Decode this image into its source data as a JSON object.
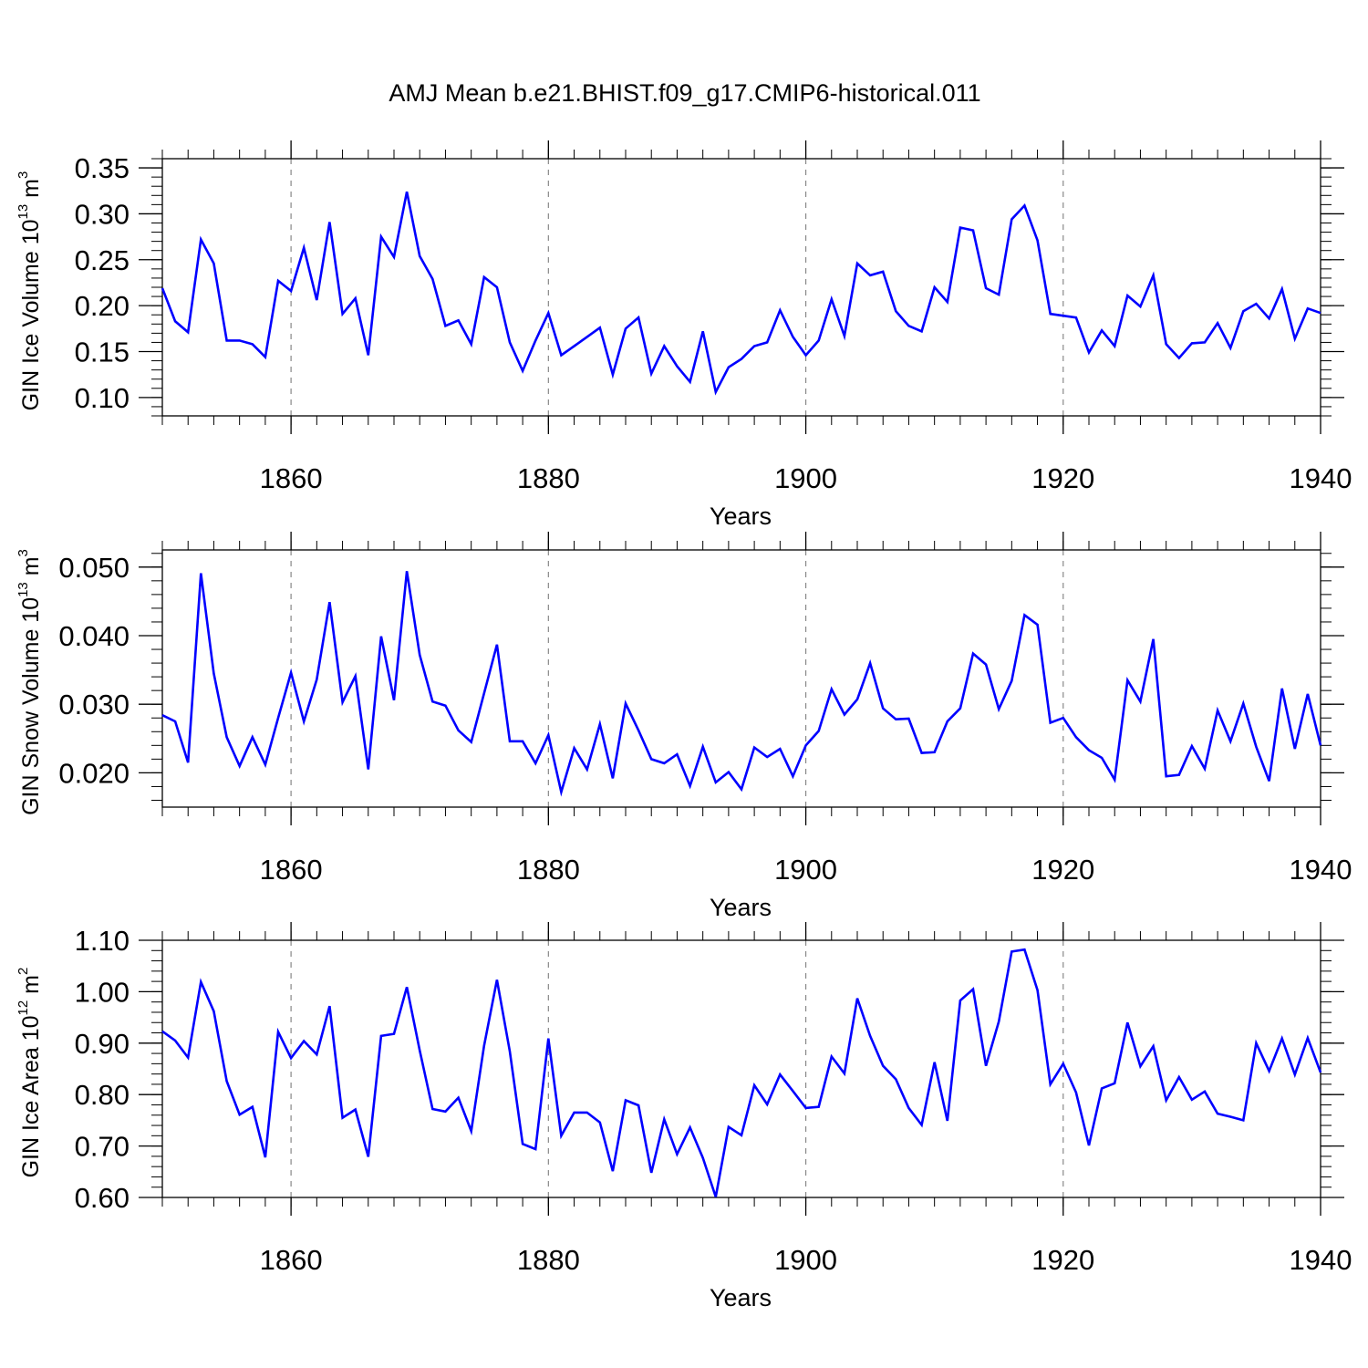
{
  "title": "AMJ Mean b.e21.BHIST.f09_g17.CMIP6-historical.011",
  "colors": {
    "line": "#0000ff",
    "axis": "#000000",
    "grid": "#888888"
  },
  "chart_data": [
    {
      "type": "line",
      "title": "",
      "xlabel": "Years",
      "ylabel": {
        "text": "GIN Ice Volume 10",
        "exp": "13",
        "unit": " m",
        "unit_exp": "3"
      },
      "xlim": [
        1850,
        1940
      ],
      "ylim": [
        0.08,
        0.36
      ],
      "xticks": [
        "1860",
        "1880",
        "1900",
        "1920",
        "1940"
      ],
      "yticks": [
        "0.10",
        "0.15",
        "0.20",
        "0.25",
        "0.30",
        "0.35"
      ],
      "grid": "dashed vertical lines at major x ticks",
      "series": [
        {
          "x": [
            1850,
            1851,
            1852,
            1853,
            1854,
            1855,
            1856,
            1857,
            1858,
            1859,
            1860,
            1861,
            1862,
            1863,
            1864,
            1865,
            1866,
            1867,
            1868,
            1869,
            1870,
            1871,
            1872,
            1873,
            1874,
            1875,
            1876,
            1877,
            1878,
            1879,
            1880,
            1881,
            1882,
            1883,
            1884,
            1885,
            1886,
            1887,
            1888,
            1889,
            1890,
            1891,
            1892,
            1893,
            1894,
            1895,
            1896,
            1897,
            1898,
            1899,
            1900,
            1901,
            1902,
            1903,
            1904,
            1905,
            1906,
            1907,
            1908,
            1909,
            1910,
            1911,
            1912,
            1913,
            1914,
            1915,
            1916,
            1917,
            1918,
            1919,
            1920,
            1921,
            1922,
            1923,
            1924,
            1925,
            1926,
            1927,
            1928,
            1929,
            1930,
            1931,
            1932,
            1933,
            1934,
            1935,
            1936,
            1937,
            1938,
            1939,
            1940
          ],
          "values": [
            0.219,
            0.183,
            0.171,
            0.272,
            0.246,
            0.162,
            0.162,
            0.158,
            0.144,
            0.227,
            0.216,
            0.263,
            0.206,
            0.291,
            0.191,
            0.208,
            0.146,
            0.275,
            0.253,
            0.324,
            0.254,
            0.229,
            0.178,
            0.184,
            0.158,
            0.231,
            0.22,
            0.16,
            0.129,
            0.162,
            0.192,
            0.146,
            0.156,
            0.166,
            0.176,
            0.125,
            0.175,
            0.187,
            0.126,
            0.156,
            0.134,
            0.117,
            0.172,
            0.106,
            0.133,
            0.142,
            0.156,
            0.16,
            0.195,
            0.166,
            0.146,
            0.162,
            0.207,
            0.167,
            0.246,
            0.233,
            0.237,
            0.194,
            0.178,
            0.172,
            0.22,
            0.204,
            0.285,
            0.282,
            0.219,
            0.212,
            0.294,
            0.309,
            0.271,
            0.191,
            0.189,
            0.187,
            0.149,
            0.173,
            0.156,
            0.211,
            0.199,
            0.233,
            0.158,
            0.143,
            0.159,
            0.16,
            0.181,
            0.154,
            0.194,
            0.202,
            0.186,
            0.218,
            0.164,
            0.197,
            0.192
          ]
        }
      ]
    },
    {
      "type": "line",
      "title": "",
      "xlabel": "Years",
      "ylabel": {
        "text": "GIN Snow Volume 10",
        "exp": "13",
        "unit": " m",
        "unit_exp": "3"
      },
      "xlim": [
        1850,
        1940
      ],
      "ylim": [
        0.015,
        0.0525
      ],
      "xticks": [
        "1860",
        "1880",
        "1900",
        "1920",
        "1940"
      ],
      "yticks": [
        "0.020",
        "0.030",
        "0.040",
        "0.050"
      ],
      "grid": "dashed vertical lines at major x ticks",
      "series": [
        {
          "x": [
            1850,
            1851,
            1852,
            1853,
            1854,
            1855,
            1856,
            1857,
            1858,
            1859,
            1860,
            1861,
            1862,
            1863,
            1864,
            1865,
            1866,
            1867,
            1868,
            1869,
            1870,
            1871,
            1872,
            1873,
            1874,
            1875,
            1876,
            1877,
            1878,
            1879,
            1880,
            1881,
            1882,
            1883,
            1884,
            1885,
            1886,
            1887,
            1888,
            1889,
            1890,
            1891,
            1892,
            1893,
            1894,
            1895,
            1896,
            1897,
            1898,
            1899,
            1900,
            1901,
            1902,
            1903,
            1904,
            1905,
            1906,
            1907,
            1908,
            1909,
            1910,
            1911,
            1912,
            1913,
            1914,
            1915,
            1916,
            1917,
            1918,
            1919,
            1920,
            1921,
            1922,
            1923,
            1924,
            1925,
            1926,
            1927,
            1928,
            1929,
            1930,
            1931,
            1932,
            1933,
            1934,
            1935,
            1936,
            1937,
            1938,
            1939,
            1940
          ],
          "values": [
            0.0284,
            0.0275,
            0.0215,
            0.0491,
            0.0345,
            0.0252,
            0.021,
            0.0252,
            0.0212,
            0.028,
            0.0346,
            0.0275,
            0.0336,
            0.0449,
            0.0303,
            0.0341,
            0.0205,
            0.0399,
            0.0306,
            0.0494,
            0.0372,
            0.0304,
            0.0298,
            0.0262,
            0.0245,
            0.0316,
            0.0387,
            0.0246,
            0.0246,
            0.0214,
            0.0255,
            0.0172,
            0.0236,
            0.0205,
            0.0271,
            0.0192,
            0.0301,
            0.0262,
            0.022,
            0.0214,
            0.0227,
            0.0181,
            0.0238,
            0.0186,
            0.0201,
            0.0176,
            0.0237,
            0.0223,
            0.0235,
            0.0195,
            0.024,
            0.0261,
            0.0322,
            0.0285,
            0.0307,
            0.036,
            0.0294,
            0.0278,
            0.0279,
            0.0229,
            0.023,
            0.0275,
            0.0294,
            0.0374,
            0.0358,
            0.0293,
            0.0334,
            0.043,
            0.0416,
            0.0273,
            0.028,
            0.0252,
            0.0233,
            0.0222,
            0.019,
            0.0335,
            0.0304,
            0.0395,
            0.0195,
            0.0197,
            0.0239,
            0.0206,
            0.0291,
            0.0246,
            0.0301,
            0.0238,
            0.0188,
            0.0323,
            0.0235,
            0.0315,
            0.024
          ]
        }
      ]
    },
    {
      "type": "line",
      "title": "",
      "xlabel": "Years",
      "ylabel": {
        "text": "GIN Ice Area 10",
        "exp": "12",
        "unit": " m",
        "unit_exp": "2"
      },
      "xlim": [
        1850,
        1940
      ],
      "ylim": [
        0.6,
        1.1
      ],
      "xticks": [
        "1860",
        "1880",
        "1900",
        "1920",
        "1940"
      ],
      "yticks": [
        "0.60",
        "0.70",
        "0.80",
        "0.90",
        "1.00",
        "1.10"
      ],
      "grid": "dashed vertical lines at major x ticks",
      "series": [
        {
          "x": [
            1850,
            1851,
            1852,
            1853,
            1854,
            1855,
            1856,
            1857,
            1858,
            1859,
            1860,
            1861,
            1862,
            1863,
            1864,
            1865,
            1866,
            1867,
            1868,
            1869,
            1870,
            1871,
            1872,
            1873,
            1874,
            1875,
            1876,
            1877,
            1878,
            1879,
            1880,
            1881,
            1882,
            1883,
            1884,
            1885,
            1886,
            1887,
            1888,
            1889,
            1890,
            1891,
            1892,
            1893,
            1894,
            1895,
            1896,
            1897,
            1898,
            1899,
            1900,
            1901,
            1902,
            1903,
            1904,
            1905,
            1906,
            1907,
            1908,
            1909,
            1910,
            1911,
            1912,
            1913,
            1914,
            1915,
            1916,
            1917,
            1918,
            1919,
            1920,
            1921,
            1922,
            1923,
            1924,
            1925,
            1926,
            1927,
            1928,
            1929,
            1930,
            1931,
            1932,
            1933,
            1934,
            1935,
            1936,
            1937,
            1938,
            1939,
            1940
          ],
          "values": [
            0.923,
            0.905,
            0.872,
            1.019,
            0.962,
            0.826,
            0.761,
            0.776,
            0.678,
            0.922,
            0.871,
            0.904,
            0.878,
            0.972,
            0.755,
            0.771,
            0.679,
            0.914,
            0.918,
            1.009,
            0.886,
            0.772,
            0.767,
            0.794,
            0.729,
            0.895,
            1.023,
            0.884,
            0.704,
            0.694,
            0.909,
            0.72,
            0.765,
            0.765,
            0.746,
            0.651,
            0.789,
            0.779,
            0.648,
            0.752,
            0.684,
            0.736,
            0.677,
            0.601,
            0.737,
            0.721,
            0.818,
            0.781,
            0.839,
            0.807,
            0.774,
            0.776,
            0.874,
            0.841,
            0.987,
            0.914,
            0.856,
            0.83,
            0.774,
            0.741,
            0.863,
            0.749,
            0.983,
            1.005,
            0.856,
            0.942,
            1.078,
            1.082,
            1.003,
            0.82,
            0.86,
            0.804,
            0.701,
            0.812,
            0.822,
            0.94,
            0.855,
            0.894,
            0.789,
            0.834,
            0.79,
            0.806,
            0.763,
            0.757,
            0.75,
            0.9,
            0.846,
            0.909,
            0.839,
            0.91,
            0.843
          ]
        }
      ]
    }
  ]
}
